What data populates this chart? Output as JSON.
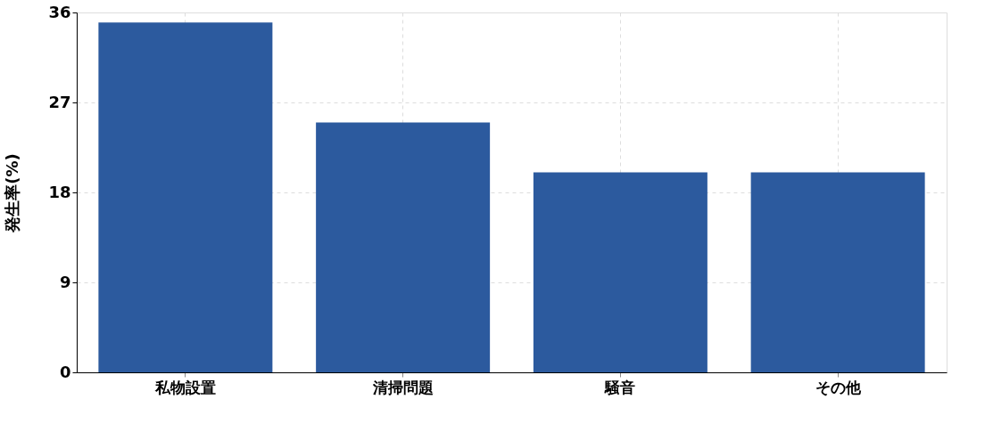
{
  "chart_data": {
    "type": "bar",
    "ylabel": "発生率(%)",
    "categories": [
      "私物設置",
      "清掃問題",
      "騒音",
      "その他"
    ],
    "series": [
      {
        "color": "#2c5a9e",
        "values": [
          35,
          25,
          20,
          20
        ]
      }
    ],
    "ylim": [
      0,
      36
    ],
    "yticks": [
      0,
      9,
      18,
      27,
      36
    ],
    "grid": true,
    "legend": false
  }
}
